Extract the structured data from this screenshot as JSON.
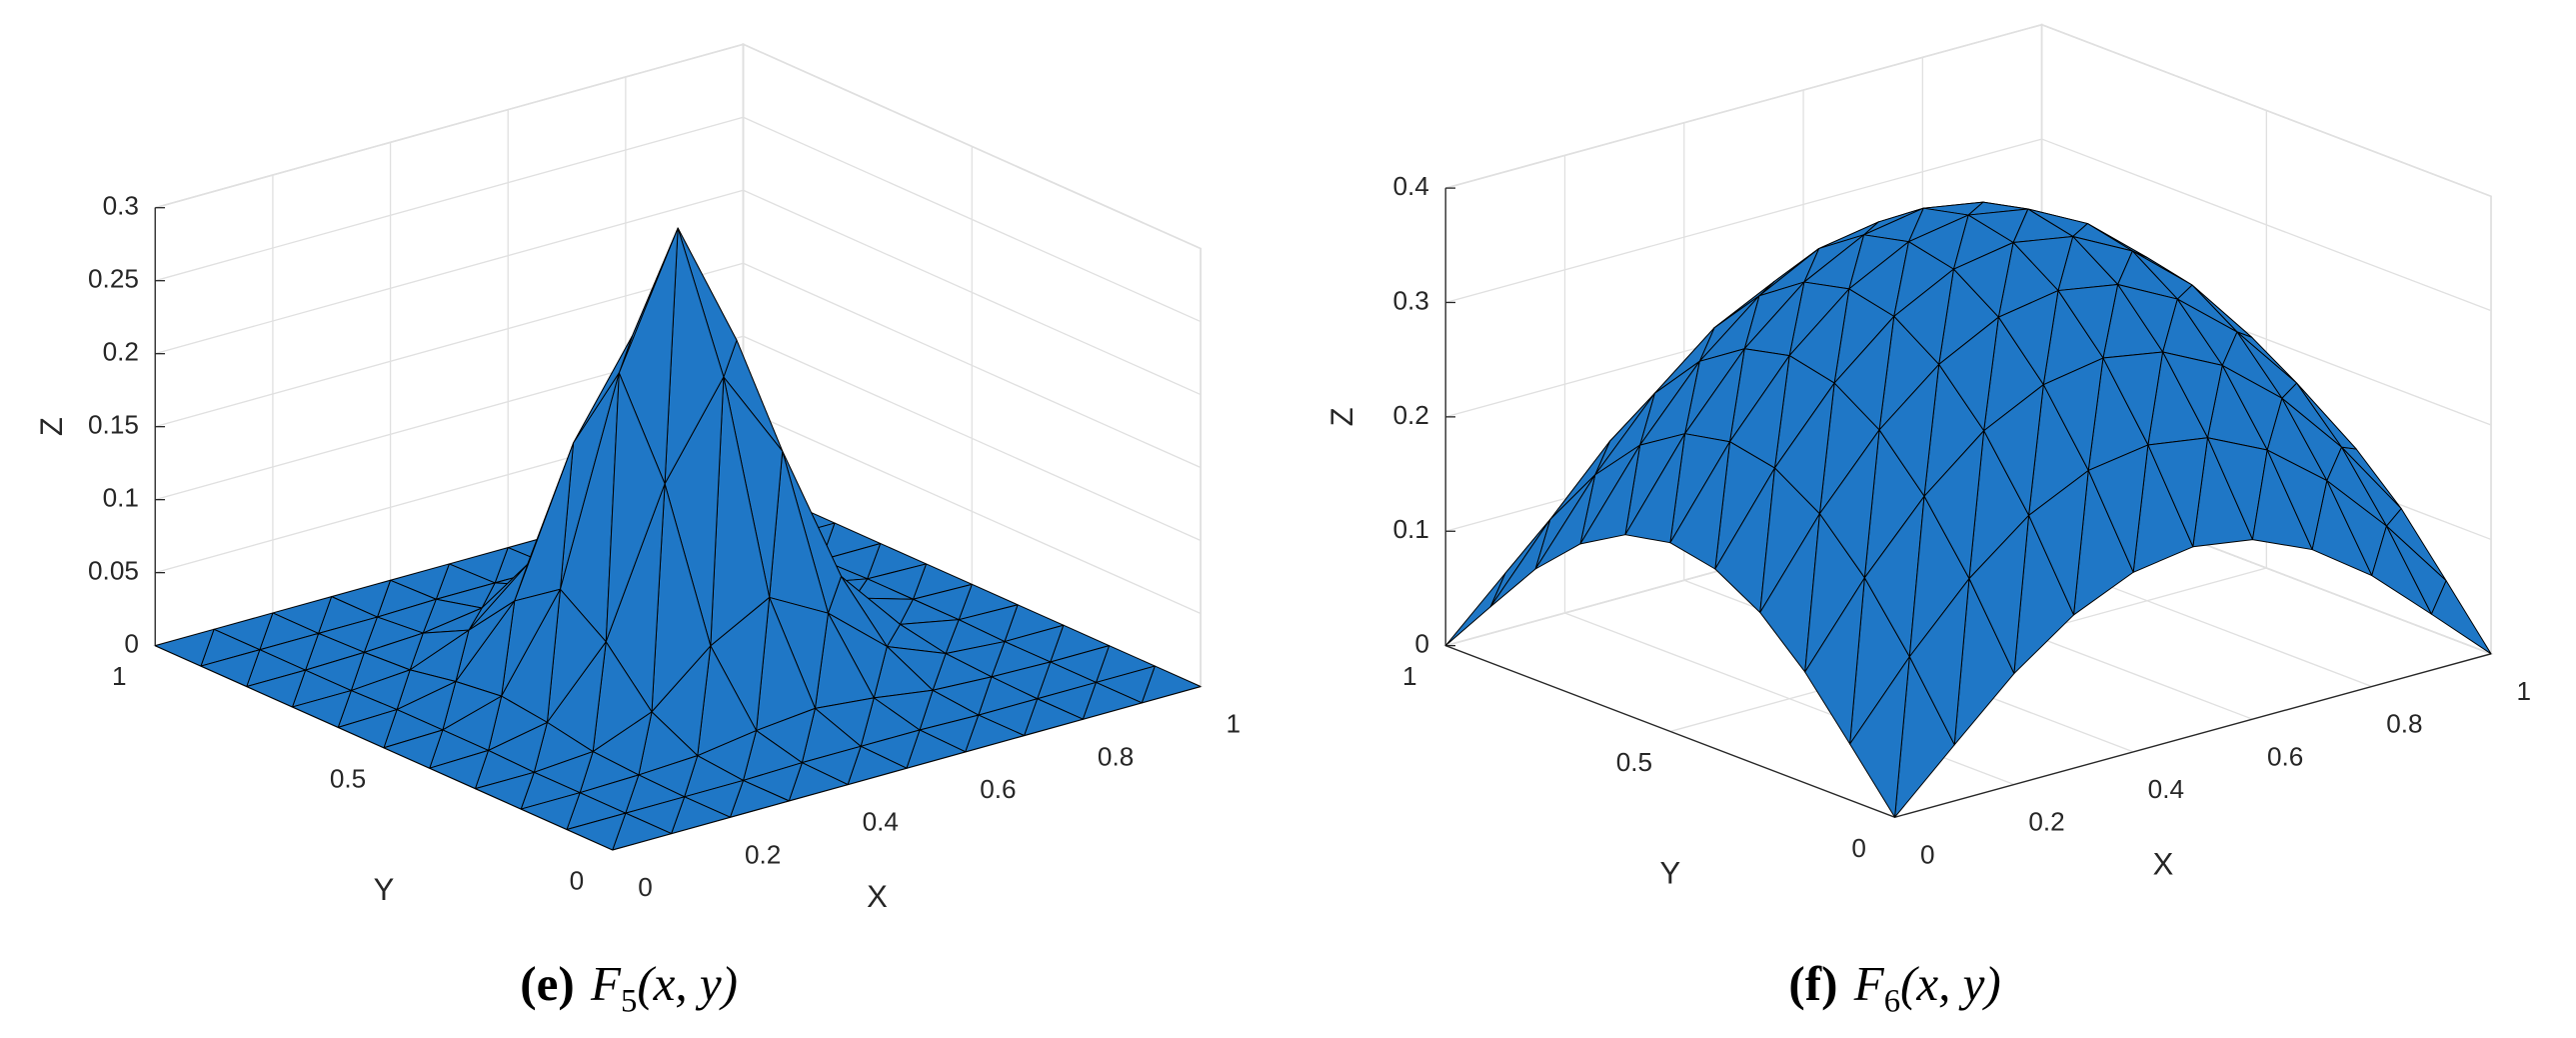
{
  "chart_data": [
    {
      "type": "surface",
      "xlabel": "X",
      "ylabel": "Y",
      "zlabel": "Z",
      "caption": {
        "letter": "(e)",
        "name": "F",
        "subscript": "5",
        "args": "(x, y)"
      },
      "x": [
        0,
        0.1,
        0.2,
        0.3,
        0.4,
        0.5,
        0.6,
        0.7,
        0.8,
        0.9,
        1
      ],
      "y": [
        0,
        0.1,
        0.2,
        0.3,
        0.4,
        0.5,
        0.6,
        0.7,
        0.8,
        0.9,
        1
      ],
      "z": [
        [
          0,
          0,
          0,
          0,
          0,
          0,
          0,
          0,
          0,
          0,
          0
        ],
        [
          0,
          0,
          0,
          0,
          0.001,
          0.001,
          0.001,
          0,
          0,
          0,
          0
        ],
        [
          0,
          0,
          0.001,
          0.003,
          0.009,
          0.013,
          0.009,
          0.003,
          0.001,
          0,
          0
        ],
        [
          0,
          0,
          0.003,
          0.019,
          0.053,
          0.075,
          0.053,
          0.019,
          0.003,
          0,
          0
        ],
        [
          0,
          0.001,
          0.009,
          0.053,
          0.15,
          0.212,
          0.15,
          0.053,
          0.009,
          0.001,
          0
        ],
        [
          0,
          0.001,
          0.013,
          0.075,
          0.212,
          0.3,
          0.212,
          0.075,
          0.013,
          0.001,
          0
        ],
        [
          0,
          0.001,
          0.009,
          0.053,
          0.15,
          0.212,
          0.15,
          0.053,
          0.009,
          0.001,
          0
        ],
        [
          0,
          0,
          0.003,
          0.019,
          0.053,
          0.075,
          0.053,
          0.019,
          0.003,
          0,
          0
        ],
        [
          0,
          0,
          0.001,
          0.003,
          0.009,
          0.013,
          0.009,
          0.003,
          0.001,
          0,
          0
        ],
        [
          0,
          0,
          0,
          0,
          0.001,
          0.001,
          0.001,
          0,
          0,
          0,
          0
        ],
        [
          0,
          0,
          0,
          0,
          0,
          0,
          0,
          0,
          0,
          0,
          0
        ]
      ],
      "xlim": [
        0,
        1
      ],
      "ylim": [
        0,
        1
      ],
      "zlim": [
        0,
        0.3
      ],
      "xticks": [
        0,
        0.2,
        0.4,
        0.6,
        0.8,
        1
      ],
      "yticks": [
        0,
        0.5,
        1
      ],
      "zticks": [
        0,
        0.05,
        0.1,
        0.15,
        0.2,
        0.25,
        0.3
      ],
      "color": "#1f77c6",
      "edgecolor": "#000000",
      "grid": true
    },
    {
      "type": "surface",
      "xlabel": "X",
      "ylabel": "Y",
      "zlabel": "Z",
      "caption": {
        "letter": "(f)",
        "name": "F",
        "subscript": "6",
        "args": "(x, y)"
      },
      "x": [
        0,
        0.1,
        0.2,
        0.3,
        0.4,
        0.5,
        0.6,
        0.7,
        0.8,
        0.9,
        1
      ],
      "y": [
        0,
        0.1,
        0.2,
        0.3,
        0.4,
        0.5,
        0.6,
        0.7,
        0.8,
        0.9,
        1
      ],
      "z": [
        [
          0,
          0.049,
          0.097,
          0.134,
          0.157,
          0.165,
          0.157,
          0.134,
          0.097,
          0.049,
          0
        ],
        [
          0.049,
          0.111,
          0.165,
          0.206,
          0.231,
          0.239,
          0.231,
          0.206,
          0.165,
          0.111,
          0.049
        ],
        [
          0.097,
          0.165,
          0.222,
          0.265,
          0.291,
          0.3,
          0.291,
          0.265,
          0.222,
          0.165,
          0.097
        ],
        [
          0.134,
          0.206,
          0.265,
          0.308,
          0.335,
          0.344,
          0.335,
          0.308,
          0.265,
          0.206,
          0.134
        ],
        [
          0.157,
          0.231,
          0.291,
          0.335,
          0.362,
          0.371,
          0.362,
          0.335,
          0.291,
          0.231,
          0.157
        ],
        [
          0.165,
          0.239,
          0.3,
          0.344,
          0.371,
          0.38,
          0.371,
          0.344,
          0.3,
          0.239,
          0.165
        ],
        [
          0.157,
          0.231,
          0.291,
          0.335,
          0.362,
          0.371,
          0.362,
          0.335,
          0.291,
          0.231,
          0.157
        ],
        [
          0.134,
          0.206,
          0.265,
          0.308,
          0.335,
          0.344,
          0.335,
          0.308,
          0.265,
          0.206,
          0.134
        ],
        [
          0.097,
          0.165,
          0.222,
          0.265,
          0.291,
          0.3,
          0.291,
          0.265,
          0.222,
          0.165,
          0.097
        ],
        [
          0.049,
          0.111,
          0.165,
          0.206,
          0.231,
          0.239,
          0.231,
          0.206,
          0.165,
          0.111,
          0.049
        ],
        [
          0,
          0.049,
          0.097,
          0.134,
          0.157,
          0.165,
          0.157,
          0.134,
          0.097,
          0.049,
          0
        ]
      ],
      "xlim": [
        0,
        1
      ],
      "ylim": [
        0,
        1
      ],
      "zlim": [
        0,
        0.4
      ],
      "xticks": [
        0,
        0.2,
        0.4,
        0.6,
        0.8,
        1
      ],
      "yticks": [
        0,
        0.5,
        1
      ],
      "zticks": [
        0,
        0.1,
        0.2,
        0.3,
        0.4
      ],
      "color": "#1f77c6",
      "edgecolor": "#000000",
      "grid": true
    }
  ]
}
